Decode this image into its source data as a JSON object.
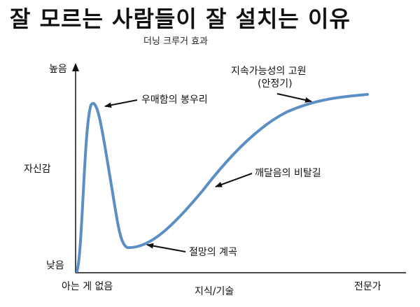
{
  "title": "잘 모르는 사람들이 잘 설치는 이유",
  "subtitle": "더닝 크루거 효과",
  "y_axis": {
    "label": "자신감",
    "high": "높음",
    "low": "낮음"
  },
  "x_axis": {
    "label": "지식/기술",
    "start": "아는 게 없음",
    "end": "전문가"
  },
  "annotations": {
    "peak": "우매함의 봉우리",
    "valley": "절망의 계곡",
    "slope": "깨달음의 비탈길",
    "plateau_line1": "지속가능성의 고원",
    "plateau_line2": "(안정기)"
  },
  "colors": {
    "curve": "#5a8ec4",
    "axis": "#111111",
    "text": "#111111"
  }
}
